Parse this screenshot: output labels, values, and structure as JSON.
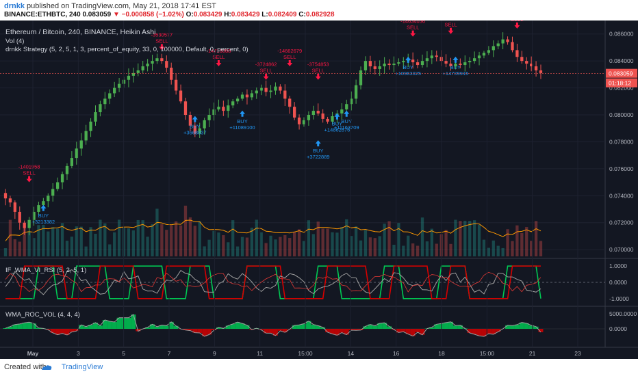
{
  "header": {
    "username": "drnkk",
    "published_text": "published on TradingView.com, May 21, 2018 17:41 EST",
    "symbol_line": "BINANCE:ETHBTC, 240",
    "last": "0.083059",
    "change": "−0.000858 (−1.02%)",
    "o_label": "O:",
    "o": "0.083429",
    "h_label": "H:",
    "h": "0.083429",
    "l_label": "L:",
    "l": "0.082409",
    "c_label": "C:",
    "c": "0.082928"
  },
  "legend": {
    "main": "Ethereum / Bitcoin, 240, BINANCE, Heikin Ashi",
    "vol": "Vol (4)",
    "strategy": "drnkk Strategy (5, 2, 5, 1, 3, percent_of_equity, 33, 0, 100000, Default, 0, percent, 0)",
    "pane2": "IF_WMA_VI_RSI (5, 2, 5, 1)",
    "pane3": "WMA_ROC_VOL (4, 4, 4)"
  },
  "price_badges": {
    "last": "0.083059",
    "countdown": "01:18:12"
  },
  "footer": {
    "created_with": "Created with",
    "brand": "TradingView"
  },
  "colors": {
    "up": "#4caf50",
    "down": "#ef5350",
    "buy": "#2196f3",
    "sell": "#ff1744",
    "bg": "#131722"
  },
  "chart_data": [
    {
      "type": "candlestick",
      "title": "Ethereum / Bitcoin, 240, BINANCE, Heikin Ashi",
      "y_ticks": [
        "0.086000",
        "0.084000",
        "0.082000",
        "0.080000",
        "0.078000",
        "0.076000",
        "0.074000",
        "0.072000",
        "0.070000"
      ],
      "ylim": [
        0.0695,
        0.087
      ],
      "x_ticks": [
        "May",
        "3",
        "5",
        "7",
        "9",
        "11",
        "15:00",
        "14",
        "16",
        "18",
        "15:00",
        "21",
        "23"
      ],
      "close": [
        0.0738,
        0.0735,
        0.0728,
        0.072,
        0.0716,
        0.0722,
        0.0728,
        0.0733,
        0.0736,
        0.074,
        0.0745,
        0.075,
        0.0756,
        0.0762,
        0.0768,
        0.0775,
        0.0781,
        0.0788,
        0.0795,
        0.0802,
        0.0808,
        0.0812,
        0.0816,
        0.082,
        0.0823,
        0.0826,
        0.0829,
        0.0831,
        0.0833,
        0.0836,
        0.0838,
        0.084,
        0.0842,
        0.084,
        0.0835,
        0.0826,
        0.0818,
        0.081,
        0.08,
        0.0792,
        0.0786,
        0.079,
        0.0796,
        0.08,
        0.0804,
        0.0806,
        0.0803,
        0.0807,
        0.081,
        0.0812,
        0.0815,
        0.0813,
        0.0816,
        0.0818,
        0.082,
        0.0817,
        0.0818,
        0.0821,
        0.0818,
        0.0812,
        0.0806,
        0.0798,
        0.0793,
        0.0796,
        0.08,
        0.0803,
        0.0801,
        0.0797,
        0.0795,
        0.0799,
        0.0801,
        0.0804,
        0.0808,
        0.0812,
        0.0822,
        0.0833,
        0.084,
        0.0836,
        0.0834,
        0.0836,
        0.0838,
        0.0837,
        0.0838,
        0.0839,
        0.084,
        0.0841,
        0.0839,
        0.0837,
        0.084,
        0.0842,
        0.0844,
        0.0843,
        0.084,
        0.0838,
        0.0836,
        0.0838,
        0.0837,
        0.0839,
        0.084,
        0.0842,
        0.0844,
        0.0846,
        0.0848,
        0.0851,
        0.0853,
        0.0856,
        0.0854,
        0.0848,
        0.0843,
        0.084,
        0.0838,
        0.0836,
        0.0833,
        0.0831
      ]
    },
    {
      "type": "line",
      "title": "IF_WMA_VI_RSI (5, 2, 5, 1)",
      "y_ticks": [
        "1.0000",
        "0.0000",
        "-1.0000"
      ],
      "ylim": [
        -1.3,
        1.3
      ]
    },
    {
      "type": "bar",
      "title": "WMA_ROC_VOL (4, 4, 4)",
      "y_ticks": [
        "5000.0000",
        "0.0000"
      ]
    }
  ],
  "trade_labels": [
    {
      "id": "s1",
      "side": "sell",
      "text": "-1401958",
      "text2": "SELL",
      "price": 0.075
    },
    {
      "id": "b1",
      "side": "buy",
      "text": "BUY",
      "text2": "+3213382",
      "price": 0.0722
    },
    {
      "id": "s2",
      "side": "sell",
      "text": "-3530577",
      "text2": "SELL",
      "price": 0.0848
    },
    {
      "id": "s3",
      "side": "sell",
      "text": "-14716888",
      "text2": "SELL",
      "price": 0.0836
    },
    {
      "id": "b2",
      "side": "buy",
      "text": "BUY",
      "text2": "+3668837",
      "price": 0.0788
    },
    {
      "id": "s4",
      "side": "sell",
      "text": "-3724862",
      "text2": "SELL",
      "price": 0.0826
    },
    {
      "id": "b3",
      "side": "buy",
      "text": "BUY",
      "text2": "+11089100",
      "price": 0.0792
    },
    {
      "id": "s5",
      "side": "sell",
      "text": "-14662679",
      "text2": "SELL",
      "price": 0.0836
    },
    {
      "id": "b4",
      "side": "buy",
      "text": "BUY",
      "text2": "+14862676",
      "price": 0.079
    },
    {
      "id": "b5",
      "side": "buy",
      "text": "BUY",
      "text2": "+3722889",
      "price": 0.077
    },
    {
      "id": "s6",
      "side": "sell",
      "text": "-3754853",
      "text2": "SELL",
      "price": 0.0826
    },
    {
      "id": "b6",
      "side": "buy",
      "text": "BUY",
      "text2": "+11163709",
      "price": 0.0792
    },
    {
      "id": "s7",
      "side": "sell",
      "text": "-14634036",
      "text2": "SELL",
      "price": 0.0858
    },
    {
      "id": "b7",
      "side": "buy",
      "text": "BUY",
      "text2": "+10963025",
      "price": 0.0832
    },
    {
      "id": "s8",
      "side": "sell",
      "text": "-14629464",
      "text2": "SELL",
      "price": 0.086
    },
    {
      "id": "b8",
      "side": "buy",
      "text": "BUY",
      "text2": "+14709915",
      "price": 0.0832
    },
    {
      "id": "s9",
      "side": "sell",
      "text": "-14670407",
      "text2": "SELL",
      "price": 0.0864
    }
  ]
}
